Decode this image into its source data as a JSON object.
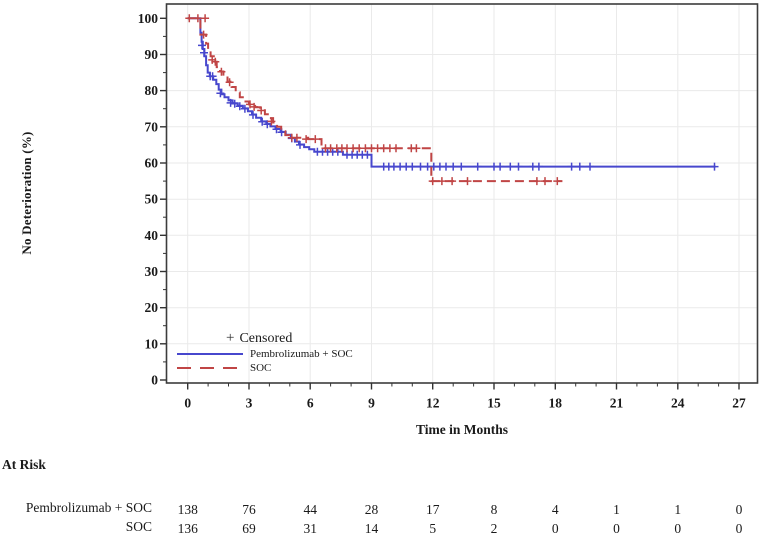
{
  "chart_data": {
    "type": "line",
    "subtype": "kaplan_meier_step",
    "title": "",
    "xlabel": "Time in Months",
    "ylabel": "No Deterioration (%)",
    "censored_label": "Censored",
    "legend_position": "inside-bottom-left",
    "grid": true,
    "xlim": [
      -1,
      28
    ],
    "ylim": [
      0,
      100
    ],
    "x_ticks": [
      0,
      3,
      6,
      9,
      12,
      15,
      18,
      21,
      24,
      27
    ],
    "y_ticks": [
      0,
      10,
      20,
      30,
      40,
      50,
      60,
      70,
      80,
      90,
      100
    ],
    "x_minor_tick_every": 1,
    "y_minor_tick_every": 5,
    "series": [
      {
        "name": "Pembrolizumab + SOC",
        "color": "#4747cd",
        "line_style": "solid",
        "steps": [
          [
            0,
            100
          ],
          [
            0.62,
            96
          ],
          [
            0.68,
            93.5
          ],
          [
            0.74,
            91.5
          ],
          [
            0.82,
            89.5
          ],
          [
            0.9,
            87
          ],
          [
            0.98,
            85
          ],
          [
            1.08,
            84
          ],
          [
            1.25,
            83
          ],
          [
            1.4,
            81.8
          ],
          [
            1.52,
            80.3
          ],
          [
            1.65,
            79
          ],
          [
            1.8,
            78.2
          ],
          [
            2.0,
            77.3
          ],
          [
            2.2,
            76.5
          ],
          [
            2.45,
            75.8
          ],
          [
            2.7,
            75.1
          ],
          [
            2.95,
            74.3
          ],
          [
            3.15,
            73.4
          ],
          [
            3.35,
            72.5
          ],
          [
            3.6,
            71.5
          ],
          [
            3.85,
            70.8
          ],
          [
            4.05,
            70.1
          ],
          [
            4.3,
            69.4
          ],
          [
            4.55,
            68.6
          ],
          [
            4.8,
            67.8
          ],
          [
            5.05,
            66.9
          ],
          [
            5.25,
            65.9
          ],
          [
            5.45,
            65.1
          ],
          [
            5.7,
            64.4
          ],
          [
            5.95,
            63.8
          ],
          [
            6.2,
            63.1
          ],
          [
            7.6,
            62.3
          ],
          [
            9.0,
            59
          ],
          [
            25.85,
            59
          ]
        ],
        "censored": [
          [
            0.7,
            92.5
          ],
          [
            0.8,
            90.5
          ],
          [
            1.1,
            84
          ],
          [
            1.22,
            84
          ],
          [
            1.6,
            79.3
          ],
          [
            2.1,
            76.6
          ],
          [
            2.3,
            76.4
          ],
          [
            2.55,
            75.7
          ],
          [
            2.8,
            75
          ],
          [
            3.2,
            73.3
          ],
          [
            3.65,
            71.4
          ],
          [
            3.9,
            70.7
          ],
          [
            4.35,
            69.3
          ],
          [
            4.6,
            68.5
          ],
          [
            5.1,
            66.8
          ],
          [
            5.5,
            65
          ],
          [
            6.35,
            63.1
          ],
          [
            6.6,
            63.1
          ],
          [
            6.85,
            63.1
          ],
          [
            7.1,
            63.1
          ],
          [
            7.35,
            63.1
          ],
          [
            7.8,
            62.3
          ],
          [
            8.05,
            62.3
          ],
          [
            8.3,
            62.3
          ],
          [
            8.55,
            62.3
          ],
          [
            8.8,
            62.3
          ],
          [
            9.6,
            59
          ],
          [
            9.85,
            59
          ],
          [
            10.1,
            59
          ],
          [
            10.4,
            59
          ],
          [
            10.7,
            59
          ],
          [
            11.0,
            59
          ],
          [
            11.4,
            59
          ],
          [
            11.75,
            59
          ],
          [
            12.05,
            59
          ],
          [
            12.35,
            59
          ],
          [
            12.65,
            59
          ],
          [
            13.0,
            59
          ],
          [
            13.4,
            59
          ],
          [
            14.2,
            59
          ],
          [
            15.0,
            59
          ],
          [
            15.3,
            59
          ],
          [
            15.8,
            59
          ],
          [
            16.2,
            59
          ],
          [
            16.9,
            59
          ],
          [
            17.2,
            59
          ],
          [
            18.8,
            59
          ],
          [
            19.2,
            59
          ],
          [
            19.7,
            59
          ],
          [
            25.8,
            59
          ]
        ]
      },
      {
        "name": "SOC",
        "color": "#c04545",
        "line_style": "dashed",
        "steps": [
          [
            0,
            100
          ],
          [
            0.62,
            95.5
          ],
          [
            0.9,
            93
          ],
          [
            1.0,
            91
          ],
          [
            1.12,
            89.5
          ],
          [
            1.28,
            88
          ],
          [
            1.42,
            86.5
          ],
          [
            1.58,
            85.3
          ],
          [
            1.75,
            84
          ],
          [
            1.95,
            82.5
          ],
          [
            2.15,
            81
          ],
          [
            2.35,
            79.5
          ],
          [
            2.55,
            78.2
          ],
          [
            2.78,
            77
          ],
          [
            3.0,
            76.2
          ],
          [
            3.3,
            75.4
          ],
          [
            3.55,
            74.6
          ],
          [
            3.78,
            73.5
          ],
          [
            3.98,
            72.4
          ],
          [
            4.18,
            71.2
          ],
          [
            4.38,
            70
          ],
          [
            4.58,
            68.8
          ],
          [
            4.78,
            67.7
          ],
          [
            4.98,
            67
          ],
          [
            5.9,
            66.6
          ],
          [
            6.55,
            64.1
          ],
          [
            11.93,
            55
          ],
          [
            18.35,
            55
          ]
        ],
        "censored": [
          [
            0.08,
            100
          ],
          [
            0.5,
            100
          ],
          [
            0.85,
            100
          ],
          [
            0.78,
            95.5
          ],
          [
            1.2,
            88.5
          ],
          [
            1.35,
            88
          ],
          [
            1.65,
            85.2
          ],
          [
            2.05,
            82.3
          ],
          [
            3.05,
            76.2
          ],
          [
            3.25,
            75.5
          ],
          [
            3.6,
            74.5
          ],
          [
            4.1,
            71.5
          ],
          [
            5.1,
            67
          ],
          [
            5.35,
            67
          ],
          [
            5.8,
            66.6
          ],
          [
            6.25,
            66.6
          ],
          [
            6.75,
            64.1
          ],
          [
            7.0,
            64.1
          ],
          [
            7.3,
            64.1
          ],
          [
            7.55,
            64.1
          ],
          [
            7.8,
            64.1
          ],
          [
            8.1,
            64.1
          ],
          [
            8.4,
            64.1
          ],
          [
            8.7,
            64.1
          ],
          [
            9.0,
            64.1
          ],
          [
            9.3,
            64.1
          ],
          [
            9.6,
            64.1
          ],
          [
            9.9,
            64.1
          ],
          [
            10.2,
            64.1
          ],
          [
            10.95,
            64.1
          ],
          [
            11.2,
            64.1
          ],
          [
            12.0,
            55
          ],
          [
            12.45,
            55
          ],
          [
            12.95,
            55
          ],
          [
            13.7,
            55
          ],
          [
            17.1,
            55
          ],
          [
            17.5,
            55
          ],
          [
            18.1,
            55
          ]
        ]
      }
    ],
    "at_risk": {
      "header": "At Risk",
      "time_points": [
        0,
        3,
        6,
        9,
        12,
        15,
        18,
        21,
        24,
        27
      ],
      "rows": [
        {
          "label": "Pembrolizumab + SOC",
          "values": [
            138,
            76,
            44,
            28,
            17,
            8,
            4,
            1,
            1,
            0
          ]
        },
        {
          "label": "SOC",
          "values": [
            136,
            69,
            31,
            14,
            5,
            2,
            0,
            0,
            0,
            0
          ]
        }
      ]
    }
  }
}
